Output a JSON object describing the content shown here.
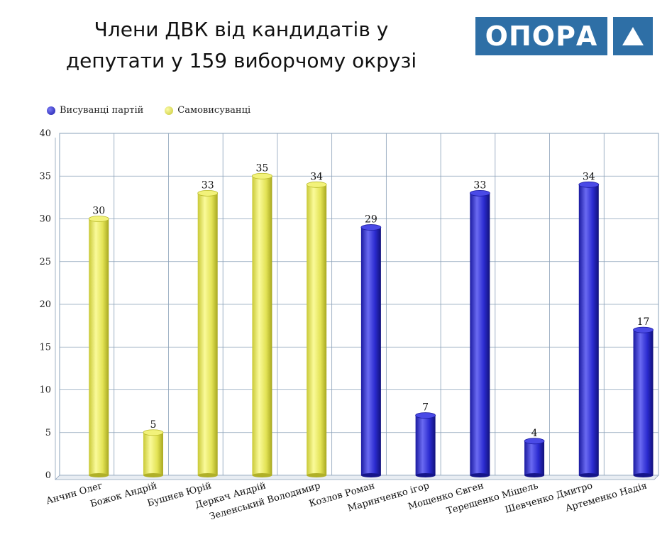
{
  "title": "Члени ДВК  від кандидатів у депутати у 159 виборчому окрузі",
  "logo": {
    "text": "ОПОРА",
    "icon": "triangle-icon",
    "color": "#2e6fa6"
  },
  "chart_data": {
    "type": "bar",
    "title": "Члени ДВК  від кандидатів у депутати у 159 виборчому окрузі",
    "xlabel": "",
    "ylabel": "",
    "ylim": [
      0,
      40
    ],
    "yticks": [
      0,
      5,
      10,
      15,
      20,
      25,
      30,
      35,
      40
    ],
    "grid": true,
    "legend_position": "top-left",
    "series": [
      {
        "name": "Висуванці партій",
        "color": "#2b2bd0"
      },
      {
        "name": "Самовисуванці",
        "color": "#e6e65a"
      }
    ],
    "categories": [
      "Анчин Олег",
      "Божок Андрій",
      "Бушнєв Юрій",
      "Деркач Андрій",
      "Зеленський Володимир",
      "Козлов Роман",
      "Маринченко ігор",
      "Мощенко Євген",
      "Терещенко Мішель",
      "Шевченко Дмитро",
      "Артеменко Надія"
    ],
    "values": [
      30,
      5,
      33,
      35,
      34,
      29,
      7,
      33,
      4,
      34,
      17
    ],
    "value_series": [
      1,
      1,
      1,
      1,
      1,
      0,
      0,
      0,
      0,
      0,
      0
    ]
  }
}
